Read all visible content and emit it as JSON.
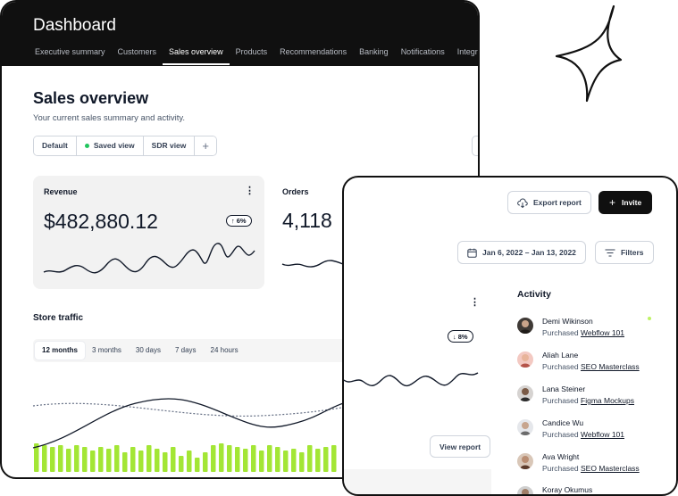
{
  "dashboard": {
    "title": "Dashboard",
    "tabs": [
      "Executive summary",
      "Customers",
      "Sales overview",
      "Products",
      "Recommendations",
      "Banking",
      "Notifications",
      "Integrations"
    ],
    "active_tab": "Sales overview"
  },
  "page": {
    "title": "Sales overview",
    "subtitle": "Your current sales summary and activity."
  },
  "views": {
    "items": [
      "Default",
      "Saved view",
      "SDR view"
    ],
    "add_icon": "plus-icon"
  },
  "revenue_card": {
    "label": "Revenue",
    "value": "$482,880.12",
    "change": "6%",
    "change_direction": "up",
    "menu_icon": "more-vertical-icon"
  },
  "orders_card": {
    "label": "Orders",
    "value": "4,118",
    "change": "8%",
    "change_direction": "down",
    "menu_icon": "more-vertical-icon",
    "view_report_label": "View report"
  },
  "store_traffic": {
    "title": "Store traffic",
    "ranges": [
      "12 months",
      "3 months",
      "30 days",
      "7 days",
      "24 hours"
    ],
    "active_range": "12 months"
  },
  "toolbar": {
    "export_label": "Export report",
    "export_icon": "download-cloud-icon",
    "invite_label": "Invite",
    "invite_icon": "plus-icon",
    "date_range": "Jan 6, 2022 – Jan 13, 2022",
    "date_icon": "calendar-icon",
    "filters_label": "Filters",
    "filters_icon": "filter-lines-icon"
  },
  "activity": {
    "title": "Activity",
    "items": [
      {
        "name": "Demi Wikinson",
        "action": "Purchased",
        "item": "Webflow 101",
        "online": true
      },
      {
        "name": "Aliah Lane",
        "action": "Purchased",
        "item": "SEO Masterclass",
        "online": false
      },
      {
        "name": "Lana Steiner",
        "action": "Purchased",
        "item": "Figma Mockups",
        "online": false
      },
      {
        "name": "Candice Wu",
        "action": "Purchased",
        "item": "Webflow 101",
        "online": false
      },
      {
        "name": "Ava Wright",
        "action": "Purchased",
        "item": "SEO Masterclass",
        "online": false
      },
      {
        "name": "Koray Okumus",
        "action": "",
        "item": "",
        "online": false
      }
    ]
  },
  "colors": {
    "dark": "#101010",
    "accent_green": "#bef264",
    "bar_green": "#a3e635",
    "card_bg": "#f2f2f2",
    "saved_dot": "#22c55e"
  },
  "decor": {
    "sparkle_icon": "four-point-star-icon"
  }
}
